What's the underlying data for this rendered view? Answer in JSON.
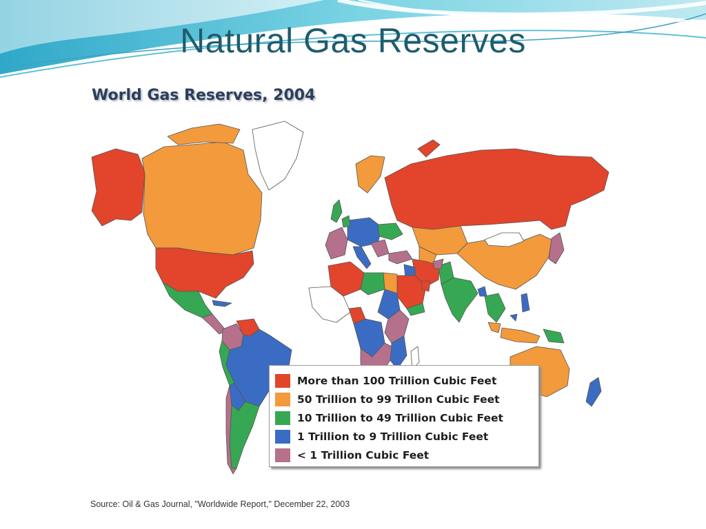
{
  "slide": {
    "title": "Natural Gas Reserves"
  },
  "map": {
    "title": "World Gas Reserves, 2004",
    "source": "Source: Oil & Gas Journal, \"Worldwide Report,\" December 22, 2003"
  },
  "legend": [
    {
      "label": "More than 100 Trillion Cubic Feet",
      "color": "#e2452b"
    },
    {
      "label": "50 Trillion to 99 Trillon Cubic Feet",
      "color": "#f29a3c"
    },
    {
      "label": "10 Trillion to 49 Trillion Cubic Feet",
      "color": "#36a853"
    },
    {
      "label": "1 Trillion to 9 Trillion Cubic Feet",
      "color": "#3b6cc4"
    },
    {
      "label": "< 1 Trillion Cubic Feet",
      "color": "#b5708c"
    }
  ],
  "colors": {
    "over_100": "#e2452b",
    "50_99": "#f29a3c",
    "10_49": "#36a853",
    "1_9": "#3b6cc4",
    "under_1": "#b5708c",
    "no_data": "#ffffff",
    "border": "#555555",
    "title": "#1f5c6e"
  }
}
